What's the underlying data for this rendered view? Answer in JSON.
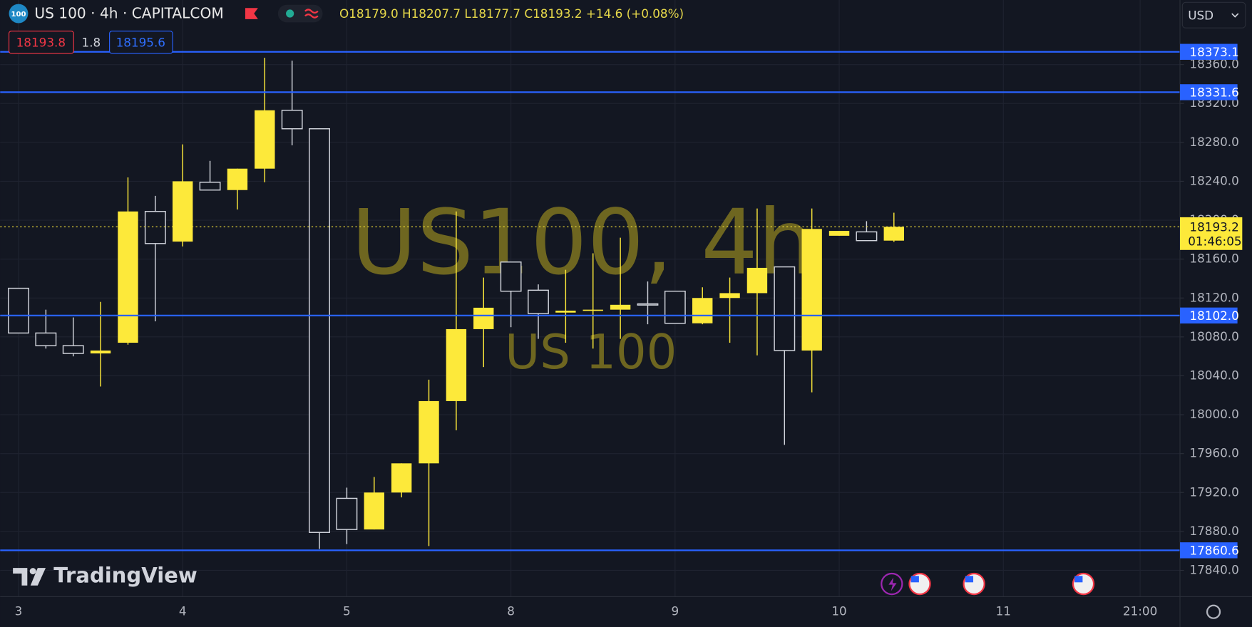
{
  "chart_data": {
    "type": "candlestick",
    "header": {
      "badge": "100",
      "symbol": "US 100 · 4h · CAPITALCOM",
      "ohlc": "O18179.0 H18207.7 L18177.7 C18193.2 +14.6 (+0.08%)",
      "bid": "18193.8",
      "spread": "1.8",
      "ask": "18195.6",
      "currency": "USD"
    },
    "watermark": "US100, 4h",
    "watermark_sub": "US 100",
    "logo": "TradingView",
    "x": [
      0,
      1,
      2,
      3,
      4,
      5,
      6,
      7,
      8,
      9,
      10,
      11,
      12,
      13,
      14,
      15,
      16,
      17,
      18,
      19,
      20,
      21,
      22,
      23,
      24,
      25,
      26,
      27,
      28,
      29,
      30,
      31,
      32
    ],
    "open": [
      18130,
      18084,
      18071,
      18063,
      18074,
      18209,
      18178,
      18239,
      18231,
      18253,
      18313,
      18294,
      17914,
      17882,
      17920,
      17950,
      18014,
      18088,
      18157,
      18128,
      18105,
      18107,
      18108,
      18114,
      18127,
      18094,
      18120,
      18125,
      18152,
      18066,
      18184,
      18188,
      18179.0
    ],
    "high": [
      18130,
      18108,
      18100,
      18116,
      18244,
      18225,
      18278,
      18261,
      18253,
      18367,
      18364,
      18294,
      17925,
      17936,
      17950,
      18036,
      18209,
      18141,
      18157,
      18134,
      18149,
      18166,
      18182,
      18137,
      18127,
      18131,
      18141,
      18212,
      18152,
      18212,
      18189,
      18199,
      18207.7
    ],
    "low": [
      18084,
      18068,
      18060,
      18029,
      18072,
      18096,
      18173,
      18231,
      18211,
      18239,
      18277,
      17862,
      17867,
      17882,
      17915,
      17865,
      17984,
      18049,
      18090,
      18078,
      18074,
      18068,
      18078,
      18093,
      18094,
      18093,
      18074,
      18061,
      17969,
      18023,
      18184,
      18179,
      18177.7
    ],
    "close": [
      18084,
      18071,
      18063,
      18066,
      18209,
      18176,
      18240,
      18231,
      18253,
      18313,
      18294,
      17879,
      17882,
      17920,
      17950,
      18014,
      18088,
      18110,
      18127,
      18104,
      18107,
      18108,
      18113,
      18113,
      18094,
      18120,
      18125,
      18151,
      18066,
      18191,
      18189,
      18179,
      18193.2
    ],
    "up_color": "#fde93a",
    "down_color": "#d1d4dc",
    "xlim": [
      -0.671,
      42.457
    ],
    "xticks": [
      {
        "value": 0,
        "label": "3"
      },
      {
        "value": 6,
        "label": "4"
      },
      {
        "value": 12,
        "label": "5"
      },
      {
        "value": 18,
        "label": "8"
      },
      {
        "value": 24,
        "label": "9"
      },
      {
        "value": 30,
        "label": "10"
      },
      {
        "value": 36,
        "label": "11"
      },
      {
        "value": 41,
        "label": "21:00"
      }
    ],
    "ylim": [
      17812.9,
      18426.4
    ],
    "yticks": [
      {
        "value": 17840,
        "label": "17840.0"
      },
      {
        "value": 17880,
        "label": "17880.0"
      },
      {
        "value": 17920,
        "label": "17920.0"
      },
      {
        "value": 17960,
        "label": "17960.0"
      },
      {
        "value": 18000,
        "label": "18000.0"
      },
      {
        "value": 18040,
        "label": "18040.0"
      },
      {
        "value": 18080,
        "label": "18080.0"
      },
      {
        "value": 18120,
        "label": "18120.0"
      },
      {
        "value": 18160,
        "label": "18160.0"
      },
      {
        "value": 18200,
        "label": "18200.0"
      },
      {
        "value": 18240,
        "label": "18240.0"
      },
      {
        "value": 18280,
        "label": "18280.0"
      },
      {
        "value": 18320,
        "label": "18320.0"
      },
      {
        "value": 18360,
        "label": "18360.0"
      }
    ],
    "grid": true,
    "hlines": {
      "values": [
        18373.1,
        18331.6,
        18102.0,
        17860.6
      ],
      "value_labels": [
        "18373.1",
        "18331.6",
        "18102.0",
        "17860.6"
      ],
      "color": "#2962ff"
    },
    "last_price": {
      "value": 18193.2,
      "countdown": "01:46:05",
      "color": "#fde93a"
    }
  }
}
